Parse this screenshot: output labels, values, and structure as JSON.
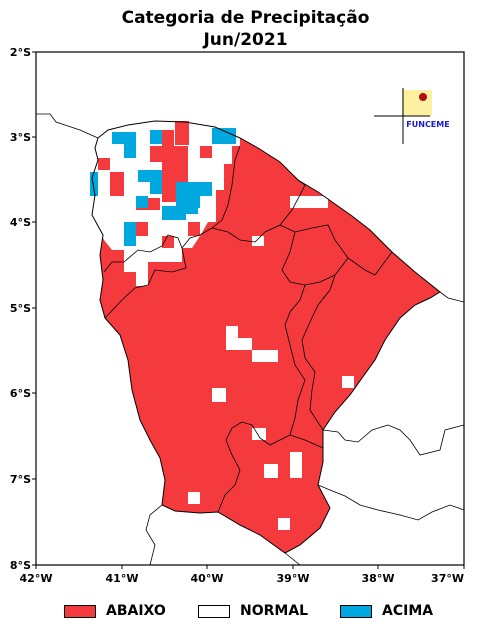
{
  "title": "Categoria de Precipitação",
  "subtitle": "Jun/2021",
  "axes": {
    "lat_labels": [
      "2°S",
      "3°S",
      "4°S",
      "5°S",
      "6°S",
      "7°S",
      "8°S"
    ],
    "lon_labels": [
      "42°W",
      "41°W",
      "40°W",
      "39°W",
      "38°W",
      "37°W"
    ]
  },
  "logo_text": "FUNCEME",
  "legend": [
    {
      "label": "ABAIXO",
      "color": "#f53a3e"
    },
    {
      "label": "NORMAL",
      "color": "#ffffff"
    },
    {
      "label": "ACIMA",
      "color": "#00a8e0"
    }
  ],
  "colors": {
    "abaixo": "#f53a3e",
    "acima": "#00a8e0",
    "logo_blue": "#1a1ad0",
    "logo_yellow": "#fdf0a0"
  }
}
